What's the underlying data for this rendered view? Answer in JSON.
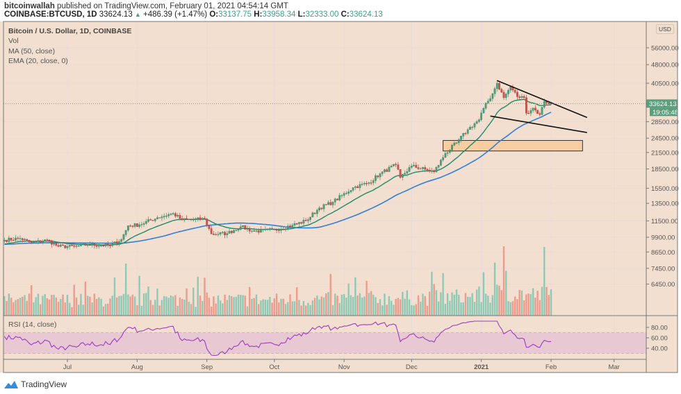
{
  "header": {
    "publisher": "bitcoinwallah",
    "published_text": "published on TradingView.com, February 01, 2021 04:54:14 GMT",
    "symbol": "COINBASE:BTCUSD, 1D",
    "last": "33624.13",
    "change": "+486.39 (+1.47%)",
    "open_label": "O:",
    "open": "33137.75",
    "high_label": "H:",
    "high": "33958.34",
    "low_label": "L:",
    "low": "32333.00",
    "close_label": "C:",
    "close": "33624.13"
  },
  "legend": {
    "title": "Bitcoin / U.S. Dollar, 1D, COINBASE",
    "vol": "Vol",
    "ma": "MA (50, close)",
    "ema": "EMA (20, close, 0)",
    "rsi": "RSI (14, close)"
  },
  "currency_badge": "USD",
  "price_badge": "33624.13",
  "countdown_badge": "19:05:48",
  "footer_logo": "TradingView",
  "colors": {
    "background": "#f2dfcf",
    "up": "#4f9e7c",
    "down": "#d0524a",
    "vol_up": "#8fc9b6",
    "vol_down": "#ee9a8c",
    "ma50": "#2f7fd8",
    "ema20": "#1b8a6a",
    "rsi": "#9c3bbf",
    "rsi_band": "#e8c8d3",
    "zone": "#f7cda2"
  },
  "chart_data": {
    "type": "candlestick",
    "y_scale": "log",
    "price_ticks": [
      "56000.00",
      "48000.00",
      "40500.00",
      "28500.00",
      "24500.00",
      "21500.00",
      "18500.00",
      "15500.00",
      "13500.00",
      "11500.00",
      "9900.00",
      "8650.00",
      "7450.00",
      "6450.00"
    ],
    "rsi_ticks": [
      "80.00",
      "60.00",
      "40.00"
    ],
    "rsi_band": [
      30,
      70
    ],
    "time_ticks": [
      "Jul",
      "Aug",
      "Sep",
      "Oct",
      "Nov",
      "Dec",
      "2021",
      "Feb",
      "Mar"
    ],
    "grid": true,
    "approx_closes": [
      [
        "2020-06-03",
        9650
      ],
      [
        "2020-06-10",
        9800
      ],
      [
        "2020-06-15",
        9400
      ],
      [
        "2020-06-22",
        9650
      ],
      [
        "2020-06-27",
        9100
      ],
      [
        "2020-07-05",
        9100
      ],
      [
        "2020-07-10",
        9250
      ],
      [
        "2020-07-20",
        9170
      ],
      [
        "2020-07-25",
        9700
      ],
      [
        "2020-07-28",
        11000
      ],
      [
        "2020-08-02",
        11100
      ],
      [
        "2020-08-10",
        11850
      ],
      [
        "2020-08-17",
        12300
      ],
      [
        "2020-08-21",
        11600
      ],
      [
        "2020-08-31",
        11700
      ],
      [
        "2020-09-03",
        10200
      ],
      [
        "2020-09-10",
        10250
      ],
      [
        "2020-09-16",
        10900
      ],
      [
        "2020-09-22",
        10450
      ],
      [
        "2020-10-01",
        10600
      ],
      [
        "2020-10-09",
        11050
      ],
      [
        "2020-10-15",
        11500
      ],
      [
        "2020-10-21",
        12950
      ],
      [
        "2020-10-27",
        13650
      ],
      [
        "2020-11-05",
        15600
      ],
      [
        "2020-11-12",
        16300
      ],
      [
        "2020-11-17",
        17700
      ],
      [
        "2020-11-24",
        19200
      ],
      [
        "2020-11-26",
        17100
      ],
      [
        "2020-12-01",
        19000
      ],
      [
        "2020-12-08",
        18300
      ],
      [
        "2020-12-11",
        18000
      ],
      [
        "2020-12-16",
        21300
      ],
      [
        "2020-12-21",
        23500
      ],
      [
        "2020-12-26",
        26500
      ],
      [
        "2020-12-31",
        29000
      ],
      [
        "2021-01-02",
        32200
      ],
      [
        "2021-01-06",
        36800
      ],
      [
        "2021-01-08",
        40500
      ],
      [
        "2021-01-11",
        35500
      ],
      [
        "2021-01-14",
        39200
      ],
      [
        "2021-01-17",
        35800
      ],
      [
        "2021-01-20",
        35500
      ],
      [
        "2021-01-21",
        30800
      ],
      [
        "2021-01-24",
        32300
      ],
      [
        "2021-01-27",
        30400
      ],
      [
        "2021-01-29",
        34300
      ],
      [
        "2021-02-01",
        33624.13
      ]
    ],
    "support_zone": [
      21800,
      24000
    ],
    "falling_wedge": {
      "upper": [
        [
          "2021-01-08",
          41500
        ],
        [
          "2021-02-17",
          29600
        ]
      ],
      "lower": [
        [
          "2021-01-05",
          30000
        ],
        [
          "2021-02-17",
          25800
        ]
      ]
    }
  }
}
